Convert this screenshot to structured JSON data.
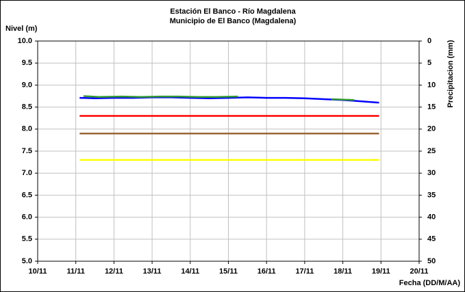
{
  "chart_data": {
    "type": "line",
    "title": "Estación El Banco - Río Magdalena",
    "subtitle": "Municipio de El Banco (Magdalena)",
    "ylabel": "Nivel (m)",
    "y2label": "Precipitacion (mm)",
    "xlabel": "Fecha (DD/M/AA)",
    "xlim": [
      10,
      20
    ],
    "xticks": [
      {
        "value": 10,
        "label": "10/11"
      },
      {
        "value": 11,
        "label": "11/11"
      },
      {
        "value": 12,
        "label": "12/11"
      },
      {
        "value": 13,
        "label": "13/11"
      },
      {
        "value": 14,
        "label": "14/11"
      },
      {
        "value": 15,
        "label": "15/11"
      },
      {
        "value": 16,
        "label": "16/11"
      },
      {
        "value": 17,
        "label": "17/11"
      },
      {
        "value": 18,
        "label": "18/11"
      },
      {
        "value": 19,
        "label": "19/11"
      },
      {
        "value": 20,
        "label": "20/11"
      }
    ],
    "ylim": [
      5,
      10
    ],
    "yticks": [
      {
        "value": 5,
        "label": "5.0"
      },
      5.5,
      {
        "value": 6,
        "label": "6.0"
      },
      6.5,
      {
        "value": 7,
        "label": "7.0"
      },
      7.5,
      {
        "value": 8,
        "label": "8.0"
      },
      8.5,
      {
        "value": 9,
        "label": "9.0"
      },
      9.5,
      {
        "value": 10,
        "label": "10.0"
      }
    ],
    "y2lim": [
      0,
      50
    ],
    "y2_inverted": true,
    "y2ticks": [
      0,
      5,
      10,
      15,
      20,
      25,
      30,
      35,
      40,
      45,
      50
    ],
    "grid": true,
    "series": [
      {
        "color": "#ffff00",
        "x": [
          11.1,
          18.95
        ],
        "values": [
          7.3,
          7.3
        ]
      },
      {
        "color": "#996633",
        "x": [
          11.1,
          18.95
        ],
        "values": [
          7.9,
          7.9
        ]
      },
      {
        "color": "#ff0000",
        "x": [
          11.1,
          18.95
        ],
        "values": [
          8.3,
          8.3
        ]
      },
      {
        "color": "#0000ff",
        "x": [
          11.1,
          11.5,
          12,
          12.5,
          13,
          13.5,
          14,
          14.5,
          15,
          15.5,
          16,
          16.5,
          17,
          17.5,
          18,
          18.5,
          18.95
        ],
        "values": [
          8.71,
          8.7,
          8.71,
          8.71,
          8.72,
          8.72,
          8.71,
          8.7,
          8.71,
          8.72,
          8.71,
          8.71,
          8.7,
          8.68,
          8.66,
          8.63,
          8.6
        ]
      },
      {
        "color": "#339933",
        "x": [
          11.2,
          11.6,
          12.2,
          12.7,
          13.2,
          13.7,
          14.2,
          14.7,
          15.25,
          16.5,
          17.7,
          18.3
        ],
        "values": [
          8.75,
          8.73,
          8.74,
          8.73,
          8.74,
          8.74,
          8.73,
          8.73,
          8.74,
          null,
          8.68,
          8.66
        ]
      }
    ]
  }
}
